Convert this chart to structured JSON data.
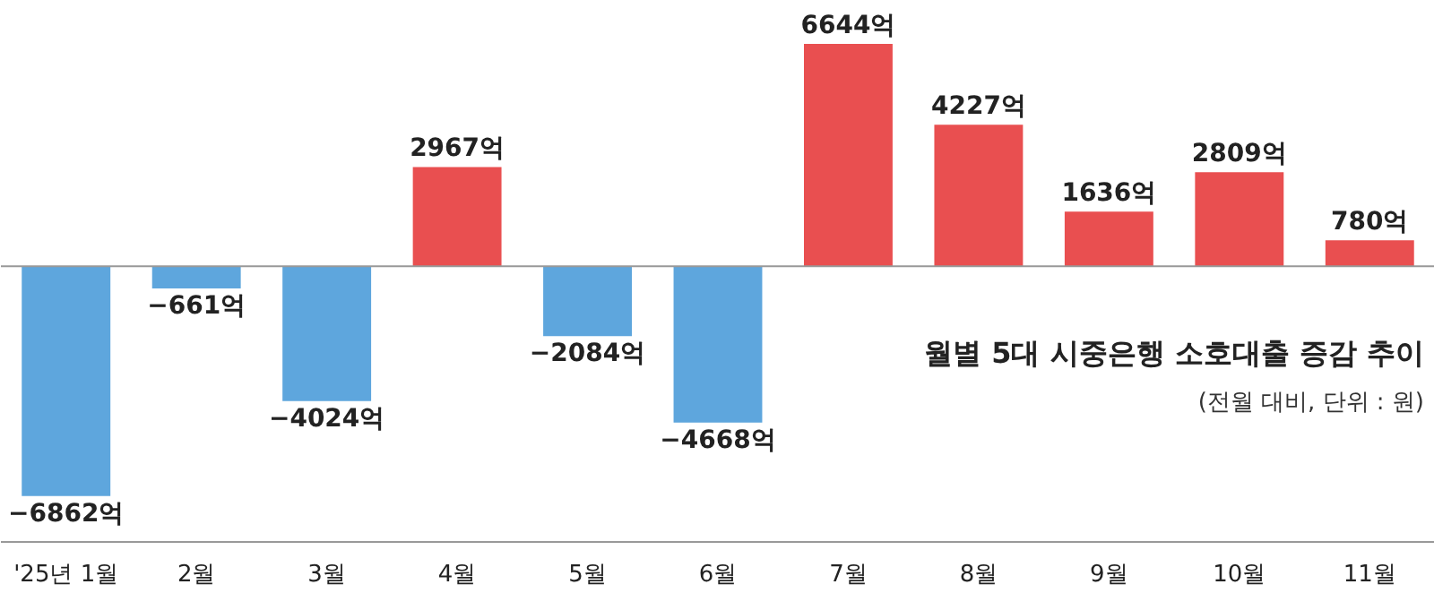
{
  "chart_data": {
    "type": "bar",
    "title": "월별 5대 시중은행 소호대출 증감 추이",
    "subtitle": "(전월 대비, 단위 : 원)",
    "categories": [
      "'25년 1월",
      "2월",
      "3월",
      "4월",
      "5월",
      "6월",
      "7월",
      "8월",
      "9월",
      "10월",
      "11월"
    ],
    "values": [
      -6862,
      -661,
      -4024,
      2967,
      -2084,
      -4668,
      6644,
      4227,
      1636,
      2809,
      780
    ],
    "value_labels": [
      "−6862억",
      "−661억",
      "−4024억",
      "2967억",
      "−2084억",
      "−4668억",
      "6644억",
      "4227억",
      "1636억",
      "2809억",
      "780억"
    ],
    "colors": [
      "#5ea6dd",
      "#5ea6dd",
      "#5ea6dd",
      "#e94f50",
      "#5ea6dd",
      "#5ea6dd",
      "#e94f50",
      "#e94f50",
      "#e94f50",
      "#e94f50",
      "#e94f50"
    ],
    "grid": false
  }
}
